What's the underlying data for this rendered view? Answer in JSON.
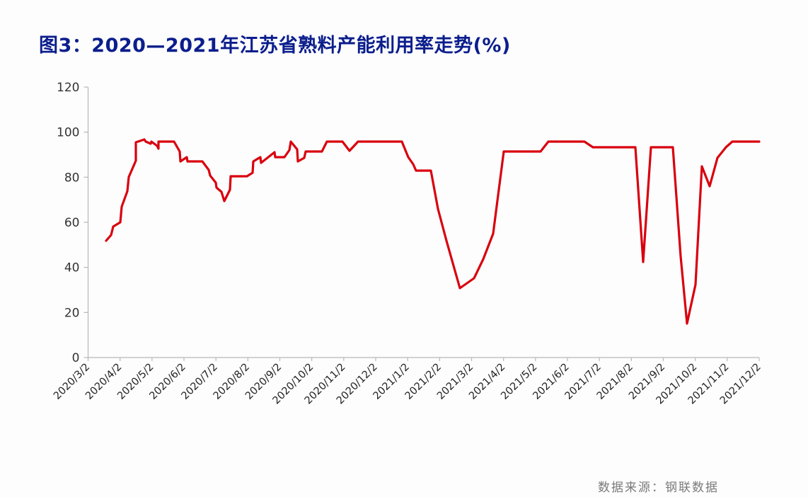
{
  "title": "图3：2020—2021年江苏省熟料产能利用率走势(%)",
  "source": "数据来源：钢联数据",
  "colors": {
    "line": "#d9000d",
    "title": "#0b1e8c",
    "axis": "#b8b8b8"
  },
  "chart_data": {
    "type": "line",
    "title": "图3：2020—2021年江苏省熟料产能利用率走势(%)",
    "xlabel": "",
    "ylabel": "%",
    "ylim": [
      0,
      120
    ],
    "yticks": [
      0,
      20,
      40,
      60,
      80,
      100,
      120
    ],
    "grid": false,
    "legend": "none",
    "xtick_labels": [
      "2020/3/2",
      "2020/4/2",
      "2020/5/2",
      "2020/6/2",
      "2020/7/2",
      "2020/8/2",
      "2020/9/2",
      "2020/10/2",
      "2020/11/2",
      "2020/12/2",
      "2021/1/2",
      "2021/2/2",
      "2021/3/2",
      "2021/4/2",
      "2021/5/2",
      "2021/6/2",
      "2021/7/2",
      "2021/8/2",
      "2021/9/2",
      "2021/10/2",
      "2021/11/2",
      "2021/12/2"
    ],
    "series": [
      {
        "name": "江苏省熟料产能利用率",
        "x": [
          "2020/3/20",
          "2020/3/25",
          "2020/3/27",
          "2020/4/2",
          "2020/4/3",
          "2020/4/9",
          "2020/4/10",
          "2020/4/17",
          "2020/4/17",
          "2020/4/25",
          "2020/4/27",
          "2020/5/2",
          "2020/5/2",
          "2020/5/7",
          "2020/5/9",
          "2020/5/9",
          "2020/5/24",
          "2020/5/29",
          "2020/5/30",
          "2020/6/5",
          "2020/6/6",
          "2020/6/20",
          "2020/6/27",
          "2020/6/28",
          "2020/7/4",
          "2020/7/5",
          "2020/7/9",
          "2020/7/12",
          "2020/7/17",
          "2020/7/18",
          "2020/8/3",
          "2020/8/8",
          "2020/8/9",
          "2020/8/16",
          "2020/8/17",
          "2020/8/30",
          "2020/8/31",
          "2020/9/9",
          "2020/9/14",
          "2020/9/15",
          "2020/9/21",
          "2020/9/22",
          "2020/9/28",
          "2020/9/29",
          "2020/10/15",
          "2020/10/20",
          "2020/11/5",
          "2020/11/12",
          "2020/11/20",
          "2021/1/1",
          "2021/1/7",
          "2021/1/12",
          "2021/1/15",
          "2021/1/29",
          "2021/2/5",
          "2021/2/13",
          "2021/2/27",
          "2021/3/13",
          "2021/3/22",
          "2021/4/1",
          "2021/4/12",
          "2021/5/18",
          "2021/5/26",
          "2021/7/1",
          "2021/7/8",
          "2021/8/20",
          "2021/8/28",
          "2021/9/4",
          "2021/9/26",
          "2021/10/2",
          "2021/10/9",
          "2021/10/17",
          "2021/10/23",
          "2021/10/31",
          "2021/11/7",
          "2021/11/16",
          "2021/11/22",
          "2021/12/2"
        ],
        "values": [
          52,
          54.5,
          58,
          60,
          67,
          74,
          80,
          87,
          95.5,
          97,
          95.5,
          95,
          96,
          94,
          92.5,
          96,
          96,
          91.5,
          87,
          89,
          87,
          87,
          83,
          80.5,
          77.5,
          75.5,
          73.5,
          69.5,
          74.5,
          80.5,
          80.5,
          82,
          87,
          89,
          86.5,
          91,
          89,
          89,
          92,
          96,
          92.5,
          87,
          88.5,
          91.5,
          91.5,
          96,
          96,
          92,
          96,
          96,
          89,
          86,
          83,
          83,
          66,
          52,
          31,
          35,
          44,
          55,
          91.5,
          91.5,
          96,
          96,
          93.5,
          93.5,
          42.5,
          93.5,
          93.5,
          15,
          32.5,
          85,
          76,
          88.5,
          93.5,
          96,
          96,
          96
        ]
      }
    ]
  },
  "plot_pixels": {
    "line_points": "150,340 157,332 160,320 170,314 172,292 180,270 182,250 192,227 192,201 204,197 206,200 213,203 214,200 222,206 224,210 224,200 246,200 254,214 255,228 264,222 265,228 286,228 295,240 297,248 305,258 306,265 313,271 317,284 325,268 326,249 349,249 357,244 358,228 368,222 369,230 388,215 389,222 402,222 409,212 411,200 420,211 421,228 430,223 432,214 455,214 462,200 484,200 494,213 506,200 568,200 577,222 584,232 588,241 609,241 619,295 631,340 650,407 670,393 683,366 697,330 712,214 764,214 775,200 826,200 838,208 898,208 909,370 920,208 951,208 962,362 971,457 983,402 992,235 1003,263 1014,223 1026,208 1035,200 1073,200"
  }
}
